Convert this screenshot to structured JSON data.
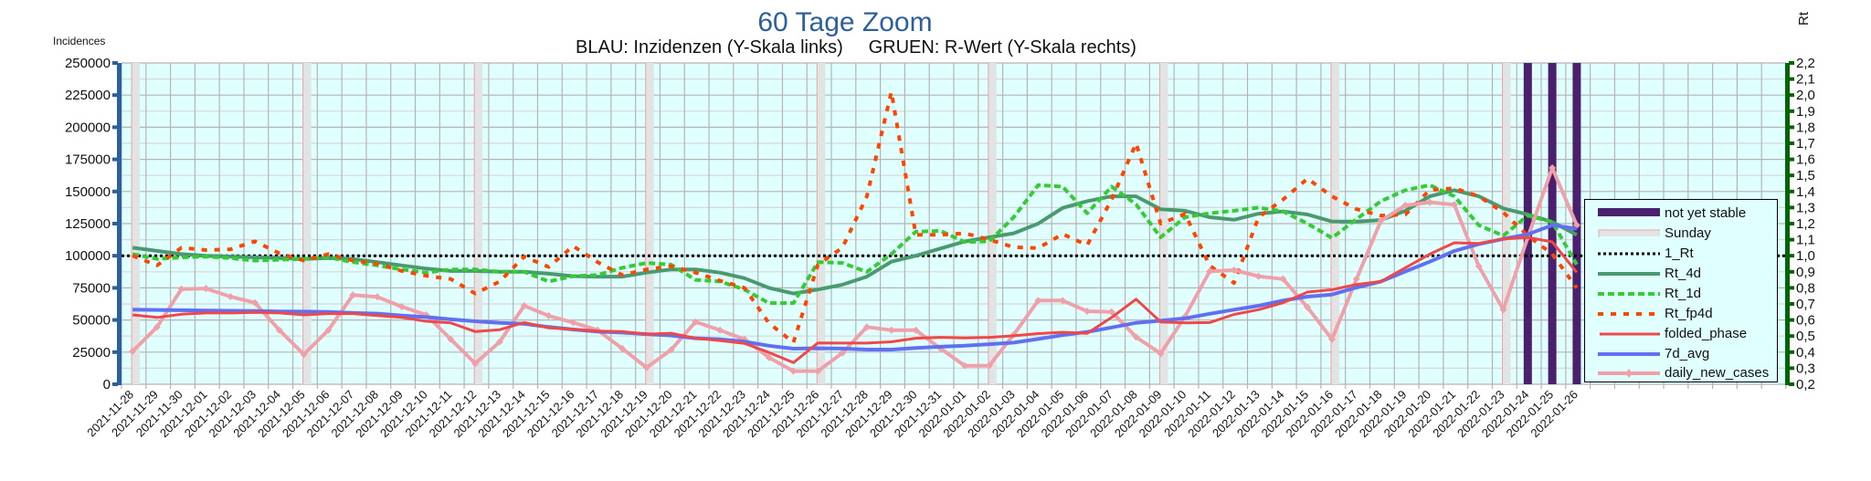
{
  "title": "60 Tage Zoom",
  "subtitle": "BLAU: Inzidenzen (Y-Skala links)     GRUEN: R-Wert (Y-Skala rechts)",
  "colors": {
    "plot_background": "#e0ffff",
    "left_axis": "#2c5f9e",
    "right_axis": "#006400",
    "not_yet_stable": "#4a1f6e",
    "sunday_fill": "#e2e4e4",
    "sunday_edge": "#f0a0a8",
    "one_rt": "#000000",
    "rt_4d": "#4a9a70",
    "rt_1d": "#33cc33",
    "rt_fp4d": "#ff4500",
    "folded_phase": "#f04848",
    "avg_7d": "#6070f0",
    "daily_new_cases": "#f0a0a8"
  },
  "legend": {
    "placement": "right",
    "items": [
      {
        "key": "not_yet_stable",
        "label": "not yet stable",
        "icon": "bar"
      },
      {
        "key": "sunday",
        "label": "Sunday",
        "icon": "bar"
      },
      {
        "key": "one_rt",
        "label": "1_Rt",
        "icon": "dotted-line"
      },
      {
        "key": "rt_4d",
        "label": "Rt_4d",
        "icon": "line"
      },
      {
        "key": "rt_1d",
        "label": "Rt_1d",
        "icon": "dashed-line"
      },
      {
        "key": "rt_fp4d",
        "label": "Rt_fp4d",
        "icon": "dashed-line"
      },
      {
        "key": "folded_phase",
        "label": "folded_phase",
        "icon": "line"
      },
      {
        "key": "avg_7d",
        "label": "7d_avg",
        "icon": "line"
      },
      {
        "key": "daily_new_cases",
        "label": "daily_new_cases",
        "icon": "line-marker"
      }
    ]
  },
  "chart_data": {
    "type": "line",
    "title": "60 Tage Zoom",
    "subtitle": "BLAU: Inzidenzen (Y-Skala links)     GRUEN: R-Wert (Y-Skala rechts)",
    "ylabel": "Incidences",
    "y2label": "Rt",
    "ylim": [
      0,
      250000
    ],
    "y2lim": [
      0.2,
      2.2
    ],
    "grid": true,
    "legend": "right",
    "empty_trailing_categories": 8,
    "yticks": [
      "0",
      "25000",
      "50000",
      "75000",
      "100000",
      "125000",
      "150000",
      "175000",
      "200000",
      "225000",
      "250000"
    ],
    "y2ticks": [
      "0,2",
      "0,3",
      "0,4",
      "0,5",
      "0,6",
      "0,7",
      "0,8",
      "0,9",
      "1,0",
      "1,1",
      "1,2",
      "1,3",
      "1,4",
      "1,5",
      "1,6",
      "1,7",
      "1,8",
      "1,9",
      "2,0",
      "2,1",
      "2,2"
    ],
    "x": [
      "2021-11-28",
      "2021-11-29",
      "2021-11-30",
      "2021-12-01",
      "2021-12-02",
      "2021-12-03",
      "2021-12-04",
      "2021-12-05",
      "2021-12-06",
      "2021-12-07",
      "2021-12-08",
      "2021-12-09",
      "2021-12-10",
      "2021-12-11",
      "2021-12-12",
      "2021-12-13",
      "2021-12-14",
      "2021-12-15",
      "2021-12-16",
      "2021-12-17",
      "2021-12-18",
      "2021-12-19",
      "2021-12-20",
      "2021-12-21",
      "2021-12-22",
      "2021-12-23",
      "2021-12-24",
      "2021-12-25",
      "2021-12-26",
      "2021-12-27",
      "2021-12-28",
      "2021-12-29",
      "2021-12-30",
      "2021-12-31",
      "2022-01-01",
      "2022-01-02",
      "2022-01-03",
      "2022-01-04",
      "2022-01-05",
      "2022-01-06",
      "2022-01-07",
      "2022-01-08",
      "2022-01-09",
      "2022-01-10",
      "2022-01-11",
      "2022-01-12",
      "2022-01-13",
      "2022-01-14",
      "2022-01-15",
      "2022-01-16",
      "2022-01-17",
      "2022-01-18",
      "2022-01-19",
      "2022-01-20",
      "2022-01-21",
      "2022-01-22",
      "2022-01-23",
      "2022-01-24",
      "2022-01-25",
      "2022-01-26"
    ],
    "sundays": [
      "2021-11-28",
      "2021-12-05",
      "2021-12-12",
      "2021-12-19",
      "2021-12-26",
      "2022-01-02",
      "2022-01-09",
      "2022-01-16",
      "2022-01-23"
    ],
    "not_yet_stable": [
      "2022-01-24",
      "2022-01-25",
      "2022-01-26"
    ],
    "one_rt": 1.0,
    "series": [
      {
        "key": "daily_new_cases",
        "name": "daily_new_cases",
        "axis": "left",
        "values": [
          25600,
          44500,
          74100,
          74500,
          68200,
          63400,
          42100,
          23200,
          42100,
          69400,
          68000,
          60400,
          54000,
          35000,
          16100,
          33000,
          61100,
          53300,
          48000,
          42100,
          27900,
          13000,
          26700,
          48500,
          42100,
          35000,
          20800,
          10200,
          10200,
          24400,
          44500,
          42100,
          42100,
          27900,
          14400,
          14500,
          38600,
          65100,
          65100,
          56800,
          56300,
          36700,
          23900,
          52800,
          87800,
          88800,
          84000,
          81900,
          59900,
          35000,
          81900,
          127300,
          139200,
          141600,
          139700,
          91800,
          58000,
          114300,
          168300,
          123800
        ]
      },
      {
        "key": "avg_7d",
        "name": "7d_avg",
        "axis": "left",
        "values": [
          58000,
          57800,
          57600,
          57400,
          57200,
          57000,
          56600,
          56500,
          56300,
          55500,
          55000,
          53500,
          52300,
          50500,
          49000,
          47700,
          47000,
          44500,
          42600,
          41000,
          40200,
          39000,
          38000,
          35800,
          35000,
          33200,
          30000,
          27700,
          28000,
          27800,
          27000,
          27000,
          28300,
          29200,
          30000,
          31200,
          32400,
          35200,
          38300,
          40700,
          44200,
          47800,
          49400,
          51300,
          54800,
          58000,
          61100,
          65100,
          68200,
          69800,
          75300,
          80000,
          87800,
          95400,
          103700,
          109100,
          113100,
          116700,
          123800,
          121000
        ]
      },
      {
        "key": "folded_phase",
        "name": "folded_phase",
        "axis": "left",
        "values": [
          54000,
          52000,
          54500,
          55500,
          55500,
          56000,
          55500,
          54000,
          55000,
          55000,
          53500,
          52000,
          49000,
          47700,
          41000,
          42500,
          48000,
          43800,
          42800,
          41300,
          41000,
          39000,
          39700,
          35800,
          34000,
          31800,
          24700,
          16800,
          32200,
          32000,
          32000,
          33000,
          35800,
          36500,
          36000,
          36500,
          37700,
          39400,
          40500,
          39600,
          52000,
          66200,
          48500,
          47800,
          48000,
          54300,
          58000,
          63400,
          71700,
          73600,
          77600,
          80000,
          90700,
          101300,
          110100,
          109600,
          113100,
          114300,
          110800,
          87100
        ]
      },
      {
        "key": "rt_4d",
        "name": "Rt_4d",
        "axis": "right",
        "values": [
          1.05,
          1.03,
          1.01,
          1.0,
          0.995,
          0.99,
          0.985,
          0.98,
          0.985,
          0.98,
          0.96,
          0.94,
          0.92,
          0.905,
          0.905,
          0.9,
          0.9,
          0.888,
          0.873,
          0.87,
          0.87,
          0.895,
          0.915,
          0.915,
          0.895,
          0.86,
          0.8,
          0.765,
          0.79,
          0.82,
          0.87,
          0.963,
          1.0,
          1.045,
          1.089,
          1.115,
          1.14,
          1.2,
          1.298,
          1.34,
          1.37,
          1.37,
          1.29,
          1.28,
          1.24,
          1.224,
          1.262,
          1.276,
          1.257,
          1.213,
          1.213,
          1.222,
          1.28,
          1.37,
          1.408,
          1.37,
          1.295,
          1.257,
          1.21,
          1.13
        ]
      },
      {
        "key": "rt_1d",
        "name": "Rt_1d",
        "axis": "right",
        "values": [
          1.01,
          0.98,
          0.99,
          0.995,
          0.985,
          0.97,
          0.975,
          0.98,
          0.99,
          0.96,
          0.94,
          0.915,
          0.895,
          0.915,
          0.915,
          0.9,
          0.9,
          0.84,
          0.873,
          0.88,
          0.925,
          0.955,
          0.945,
          0.85,
          0.84,
          0.79,
          0.705,
          0.705,
          0.96,
          0.955,
          0.9,
          1.01,
          1.15,
          1.155,
          1.085,
          1.09,
          1.24,
          1.44,
          1.43,
          1.265,
          1.43,
          1.32,
          1.115,
          1.24,
          1.265,
          1.28,
          1.3,
          1.276,
          1.2,
          1.111,
          1.228,
          1.34,
          1.408,
          1.44,
          1.37,
          1.19,
          1.125,
          1.25,
          1.21,
          0.945
        ]
      },
      {
        "key": "rt_fp4d",
        "name": "Rt_fp4d",
        "axis": "right",
        "values": [
          1.0,
          0.94,
          1.05,
          1.035,
          1.04,
          1.09,
          1.015,
          0.97,
          1.01,
          0.97,
          0.95,
          0.905,
          0.875,
          0.855,
          0.765,
          0.84,
          0.995,
          0.93,
          1.06,
          0.96,
          0.88,
          0.915,
          0.935,
          0.895,
          0.845,
          0.8,
          0.58,
          0.46,
          0.945,
          1.05,
          1.37,
          2.02,
          1.13,
          1.13,
          1.14,
          1.1,
          1.053,
          1.048,
          1.135,
          1.066,
          1.35,
          1.7,
          1.2,
          1.26,
          0.94,
          0.83,
          1.24,
          1.35,
          1.48,
          1.37,
          1.29,
          1.25,
          1.257,
          1.41,
          1.42,
          1.37,
          1.27,
          1.125,
          1.011,
          0.8
        ]
      }
    ]
  }
}
